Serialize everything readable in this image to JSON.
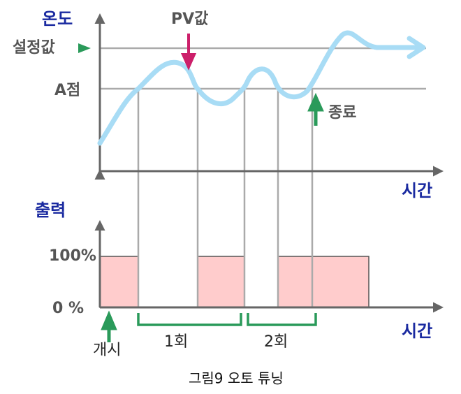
{
  "labels": {
    "temperature": "온도",
    "pv_value": "PV값",
    "setpoint": "설정값",
    "point_a": "A점",
    "end": "종료",
    "time_upper": "시간",
    "output": "출력",
    "output_high": "100%",
    "output_low": "0 %",
    "time_lower": "시간",
    "start": "개시",
    "cycle_1": "1회",
    "cycle_2": "2회"
  },
  "caption": "그림9  오토 튜닝"
}
